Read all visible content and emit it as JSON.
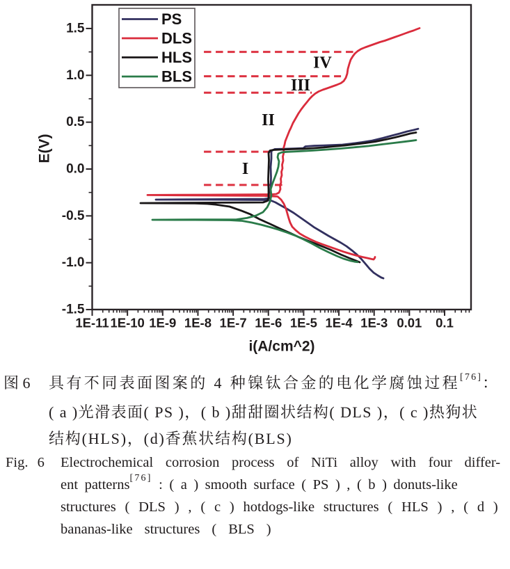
{
  "figure": {
    "caption_zh": {
      "label": "图 6",
      "line1": "具有不同表面图案的 4 种镍钛合金的电化学腐蚀过程",
      "line1_sup": "[76]",
      "line1_tail": "：",
      "line2": "(a)光滑表面(PS)，(b)甜甜圈状结构(DLS)，(c)热狗状",
      "line3": "结构(HLS)，(d)香蕉状结构(BLS)"
    },
    "caption_en": {
      "label": "Fig. 6",
      "line1": "Electrochemical corrosion process of NiTi alloy with four differ-",
      "line2_pre": "ent patterns",
      "line2_sup": "[76]",
      "line2_post": ": (a) smooth surface (PS), (b) donuts-like",
      "line3": "structures (DLS), (c) hotdogs-like structures (HLS), (d)",
      "line4": "bananas-like structures (BLS)"
    }
  },
  "chart_data": {
    "type": "line",
    "title": "",
    "xlabel": "i(A/cm^2)",
    "ylabel": "E(V)",
    "x_scale": "log10",
    "xlim_log10": [
      -11,
      -0.25
    ],
    "ylim": [
      -1.5,
      1.737
    ],
    "grid": false,
    "legend_position": "top-left",
    "x_ticks": [
      {
        "log10": -11,
        "label": "1E-11"
      },
      {
        "log10": -10,
        "label": "1E-10"
      },
      {
        "log10": -9,
        "label": "1E-9"
      },
      {
        "log10": -8,
        "label": "1E-8"
      },
      {
        "log10": -7,
        "label": "1E-7"
      },
      {
        "log10": -6,
        "label": "1E-6"
      },
      {
        "log10": -5,
        "label": "1E-5"
      },
      {
        "log10": -4,
        "label": "1E-4"
      },
      {
        "log10": -3,
        "label": "1E-3"
      },
      {
        "log10": -2,
        "label": "0.01"
      },
      {
        "log10": -1,
        "label": "0.1"
      }
    ],
    "y_ticks": [
      {
        "E": 1.5,
        "label": "1.5"
      },
      {
        "E": 1.0,
        "label": "1.0"
      },
      {
        "E": 0.5,
        "label": "0.5"
      },
      {
        "E": 0.0,
        "label": "0.0"
      },
      {
        "E": -0.5,
        "label": "-0.5"
      },
      {
        "E": -1.0,
        "label": "-1.0"
      },
      {
        "E": -1.5,
        "label": "-1.5"
      }
    ],
    "y_minor_step": 0.25,
    "series": [
      {
        "name": "PS",
        "color": "#32305f",
        "points": [
          [
            -2.737,
            -1.166
          ],
          [
            -2.797,
            -1.158
          ],
          [
            -2.895,
            -1.136
          ],
          [
            -3.014,
            -1.106
          ],
          [
            -3.132,
            -1.062
          ],
          [
            -3.251,
            -1.01
          ],
          [
            -3.369,
            -0.958
          ],
          [
            -3.488,
            -0.913
          ],
          [
            -3.626,
            -0.869
          ],
          [
            -3.784,
            -0.824
          ],
          [
            -3.942,
            -0.787
          ],
          [
            -4.119,
            -0.75
          ],
          [
            -4.297,
            -0.713
          ],
          [
            -4.495,
            -0.668
          ],
          [
            -4.692,
            -0.624
          ],
          [
            -4.889,
            -0.572
          ],
          [
            -5.087,
            -0.52
          ],
          [
            -5.284,
            -0.468
          ],
          [
            -5.482,
            -0.423
          ],
          [
            -5.659,
            -0.386
          ],
          [
            -5.798,
            -0.356
          ],
          [
            -5.916,
            -0.338
          ],
          [
            -6.114,
            -0.33
          ],
          [
            -7.693,
            -0.327
          ],
          [
            -9.193,
            -0.327
          ],
          [
            -7.693,
            -0.323
          ],
          [
            -6.114,
            -0.319
          ],
          [
            -5.956,
            -0.312
          ],
          [
            -5.936,
            -0.2
          ],
          [
            -5.926,
            -0.089
          ],
          [
            -5.936,
            0.022
          ],
          [
            -5.916,
            0.111
          ],
          [
            -5.916,
            0.193
          ],
          [
            -5.817,
            0.212
          ],
          [
            -5.521,
            0.215
          ],
          [
            -5.225,
            0.219
          ],
          [
            -5.008,
            0.223
          ],
          [
            -4.949,
            0.241
          ],
          [
            -4.692,
            0.249
          ],
          [
            -4.435,
            0.252
          ],
          [
            -4.139,
            0.256
          ],
          [
            -3.902,
            0.26
          ],
          [
            -3.646,
            0.271
          ],
          [
            -3.349,
            0.286
          ],
          [
            -3.053,
            0.304
          ],
          [
            -2.757,
            0.33
          ],
          [
            -2.5,
            0.356
          ],
          [
            -2.264,
            0.379
          ],
          [
            -2.066,
            0.401
          ],
          [
            -1.888,
            0.416
          ],
          [
            -1.75,
            0.429
          ]
        ]
      },
      {
        "name": "DLS",
        "color": "#da2c3c",
        "points": [
          [
            -2.974,
            -0.939
          ],
          [
            -2.984,
            -0.95
          ],
          [
            -3.014,
            -0.965
          ],
          [
            -3.073,
            -0.961
          ],
          [
            -3.192,
            -0.95
          ],
          [
            -3.33,
            -0.939
          ],
          [
            -3.488,
            -0.924
          ],
          [
            -3.665,
            -0.906
          ],
          [
            -3.863,
            -0.883
          ],
          [
            -4.06,
            -0.857
          ],
          [
            -4.258,
            -0.831
          ],
          [
            -4.455,
            -0.805
          ],
          [
            -4.633,
            -0.78
          ],
          [
            -4.81,
            -0.75
          ],
          [
            -4.968,
            -0.72
          ],
          [
            -5.107,
            -0.69
          ],
          [
            -5.225,
            -0.653
          ],
          [
            -5.324,
            -0.616
          ],
          [
            -5.383,
            -0.572
          ],
          [
            -5.423,
            -0.527
          ],
          [
            -5.462,
            -0.475
          ],
          [
            -5.501,
            -0.423
          ],
          [
            -5.561,
            -0.371
          ],
          [
            -5.64,
            -0.327
          ],
          [
            -5.738,
            -0.293
          ],
          [
            -6.114,
            -0.286
          ],
          [
            -7.693,
            -0.282
          ],
          [
            -9.43,
            -0.278
          ],
          [
            -7.693,
            -0.275
          ],
          [
            -5.916,
            -0.271
          ],
          [
            -5.778,
            -0.267
          ],
          [
            -5.699,
            -0.252
          ],
          [
            -5.659,
            -0.215
          ],
          [
            -5.669,
            -0.178
          ],
          [
            -5.64,
            -0.141
          ],
          [
            -5.65,
            -0.104
          ],
          [
            -5.62,
            -0.067
          ],
          [
            -5.63,
            -0.03
          ],
          [
            -5.6,
            0.007
          ],
          [
            -5.61,
            0.045
          ],
          [
            -5.58,
            0.089
          ],
          [
            -5.59,
            0.134
          ],
          [
            -5.561,
            0.178
          ],
          [
            -5.571,
            0.223
          ],
          [
            -5.541,
            0.26
          ],
          [
            -5.521,
            0.297
          ],
          [
            -5.482,
            0.334
          ],
          [
            -5.442,
            0.371
          ],
          [
            -5.403,
            0.408
          ],
          [
            -5.363,
            0.438
          ],
          [
            -5.304,
            0.49
          ],
          [
            -5.225,
            0.542
          ],
          [
            -5.146,
            0.594
          ],
          [
            -5.067,
            0.638
          ],
          [
            -4.988,
            0.676
          ],
          [
            -4.909,
            0.713
          ],
          [
            -4.83,
            0.75
          ],
          [
            -4.751,
            0.78
          ],
          [
            -4.672,
            0.805
          ],
          [
            -4.574,
            0.828
          ],
          [
            -4.455,
            0.846
          ],
          [
            -4.337,
            0.861
          ],
          [
            -4.198,
            0.88
          ],
          [
            -4.06,
            0.898
          ],
          [
            -3.942,
            0.917
          ],
          [
            -3.863,
            0.939
          ],
          [
            -3.804,
            0.973
          ],
          [
            -3.764,
            1.017
          ],
          [
            -3.744,
            1.069
          ],
          [
            -3.705,
            1.121
          ],
          [
            -3.665,
            1.166
          ],
          [
            -3.606,
            1.203
          ],
          [
            -3.547,
            1.232
          ],
          [
            -3.468,
            1.258
          ],
          [
            -3.369,
            1.281
          ],
          [
            -3.251,
            1.299
          ],
          [
            -3.113,
            1.318
          ],
          [
            -2.974,
            1.336
          ],
          [
            -2.836,
            1.355
          ],
          [
            -2.698,
            1.37
          ],
          [
            -2.56,
            1.388
          ],
          [
            -2.422,
            1.407
          ],
          [
            -2.283,
            1.425
          ],
          [
            -2.145,
            1.444
          ],
          [
            -2.007,
            1.463
          ],
          [
            -1.888,
            1.477
          ],
          [
            -1.79,
            1.492
          ],
          [
            -1.711,
            1.503
          ]
        ]
      },
      {
        "name": "HLS",
        "color": "#191617",
        "points": [
          [
            -3.409,
            -0.995
          ],
          [
            -3.527,
            -0.976
          ],
          [
            -3.705,
            -0.95
          ],
          [
            -3.942,
            -0.913
          ],
          [
            -4.238,
            -0.861
          ],
          [
            -4.534,
            -0.817
          ],
          [
            -4.83,
            -0.772
          ],
          [
            -5.126,
            -0.728
          ],
          [
            -5.383,
            -0.683
          ],
          [
            -5.659,
            -0.638
          ],
          [
            -5.956,
            -0.586
          ],
          [
            -6.252,
            -0.535
          ],
          [
            -6.508,
            -0.483
          ],
          [
            -6.765,
            -0.445
          ],
          [
            -7.101,
            -0.401
          ],
          [
            -7.496,
            -0.379
          ],
          [
            -7.732,
            -0.371
          ],
          [
            -8.088,
            -0.367
          ],
          [
            -9.628,
            -0.364
          ],
          [
            -8.088,
            -0.36
          ],
          [
            -6.153,
            -0.356
          ],
          [
            -6.035,
            -0.341
          ],
          [
            -5.995,
            -0.312
          ],
          [
            -5.995,
            -0.215
          ],
          [
            -6.005,
            -0.111
          ],
          [
            -5.995,
            -0.007
          ],
          [
            -5.985,
            0.097
          ],
          [
            -5.995,
            0.171
          ],
          [
            -5.956,
            0.197
          ],
          [
            -5.857,
            0.204
          ],
          [
            -5.62,
            0.208
          ],
          [
            -5.324,
            0.212
          ],
          [
            -5.028,
            0.215
          ],
          [
            -4.731,
            0.223
          ],
          [
            -4.435,
            0.23
          ],
          [
            -4.139,
            0.241
          ],
          [
            -3.843,
            0.252
          ],
          [
            -3.547,
            0.264
          ],
          [
            -3.251,
            0.278
          ],
          [
            -2.955,
            0.293
          ],
          [
            -2.658,
            0.316
          ],
          [
            -2.402,
            0.338
          ],
          [
            -2.165,
            0.36
          ],
          [
            -1.967,
            0.379
          ],
          [
            -1.809,
            0.39
          ]
        ]
      },
      {
        "name": "BLS",
        "color": "#2a7b49",
        "points": [
          [
            -3.468,
            -0.993
          ],
          [
            -3.547,
            -0.989
          ],
          [
            -3.685,
            -0.978
          ],
          [
            -3.863,
            -0.958
          ],
          [
            -4.06,
            -0.928
          ],
          [
            -4.297,
            -0.887
          ],
          [
            -4.534,
            -0.843
          ],
          [
            -4.771,
            -0.794
          ],
          [
            -5.008,
            -0.75
          ],
          [
            -5.245,
            -0.709
          ],
          [
            -5.482,
            -0.676
          ],
          [
            -5.719,
            -0.646
          ],
          [
            -5.956,
            -0.62
          ],
          [
            -6.212,
            -0.594
          ],
          [
            -6.469,
            -0.572
          ],
          [
            -6.745,
            -0.553
          ],
          [
            -7.101,
            -0.546
          ],
          [
            -8.088,
            -0.543
          ],
          [
            -9.292,
            -0.542
          ],
          [
            -8.088,
            -0.54
          ],
          [
            -6.903,
            -0.538
          ],
          [
            -6.607,
            -0.523
          ],
          [
            -6.35,
            -0.497
          ],
          [
            -6.153,
            -0.46
          ],
          [
            -6.035,
            -0.408
          ],
          [
            -5.956,
            -0.349
          ],
          [
            -5.916,
            -0.282
          ],
          [
            -5.936,
            -0.215
          ],
          [
            -5.877,
            -0.148
          ],
          [
            -5.817,
            -0.089
          ],
          [
            -5.758,
            -0.03
          ],
          [
            -5.719,
            0.022
          ],
          [
            -5.699,
            0.082
          ],
          [
            -5.738,
            0.126
          ],
          [
            -5.719,
            0.163
          ],
          [
            -5.62,
            0.178
          ],
          [
            -5.482,
            0.183
          ],
          [
            -5.126,
            0.189
          ],
          [
            -4.731,
            0.198
          ],
          [
            -4.337,
            0.208
          ],
          [
            -3.942,
            0.219
          ],
          [
            -3.547,
            0.232
          ],
          [
            -3.152,
            0.246
          ],
          [
            -2.757,
            0.264
          ],
          [
            -2.461,
            0.278
          ],
          [
            -2.165,
            0.291
          ],
          [
            -1.928,
            0.302
          ],
          [
            -1.809,
            0.308
          ]
        ]
      }
    ],
    "dashed_guides": {
      "color": "#dd3342",
      "lines": [
        {
          "E": 1.25,
          "lx_from": -7.83,
          "lx_to": -3.58
        },
        {
          "E": 0.99,
          "lx_from": -7.83,
          "lx_to": -3.94
        },
        {
          "E": 0.815,
          "lx_from": -7.83,
          "lx_to": -4.77
        },
        {
          "E": 0.185,
          "lx_from": -7.83,
          "lx_to": -5.9
        },
        {
          "E": -0.17,
          "lx_from": -7.83,
          "lx_to": -5.56
        }
      ]
    },
    "region_labels": [
      {
        "text": "I",
        "lx": -6.656,
        "E": 0.0
      },
      {
        "text": "II",
        "lx": -6.005,
        "E": 0.52
      },
      {
        "text": "III",
        "lx": -5.087,
        "E": 0.891
      },
      {
        "text": "IV",
        "lx": -4.465,
        "E": 1.132
      }
    ]
  },
  "axes": {
    "x_title": "i(A/cm^2)",
    "y_title": "E(V)"
  },
  "legend": {
    "items": [
      {
        "label": "PS",
        "color": "#32305f"
      },
      {
        "label": "DLS",
        "color": "#da2c3c"
      },
      {
        "label": "HLS",
        "color": "#191617"
      },
      {
        "label": "BLS",
        "color": "#2a7b49"
      }
    ]
  },
  "colors": {
    "frame": "#2b2528",
    "text": "#1f1b1c",
    "background": "#ffffff"
  }
}
